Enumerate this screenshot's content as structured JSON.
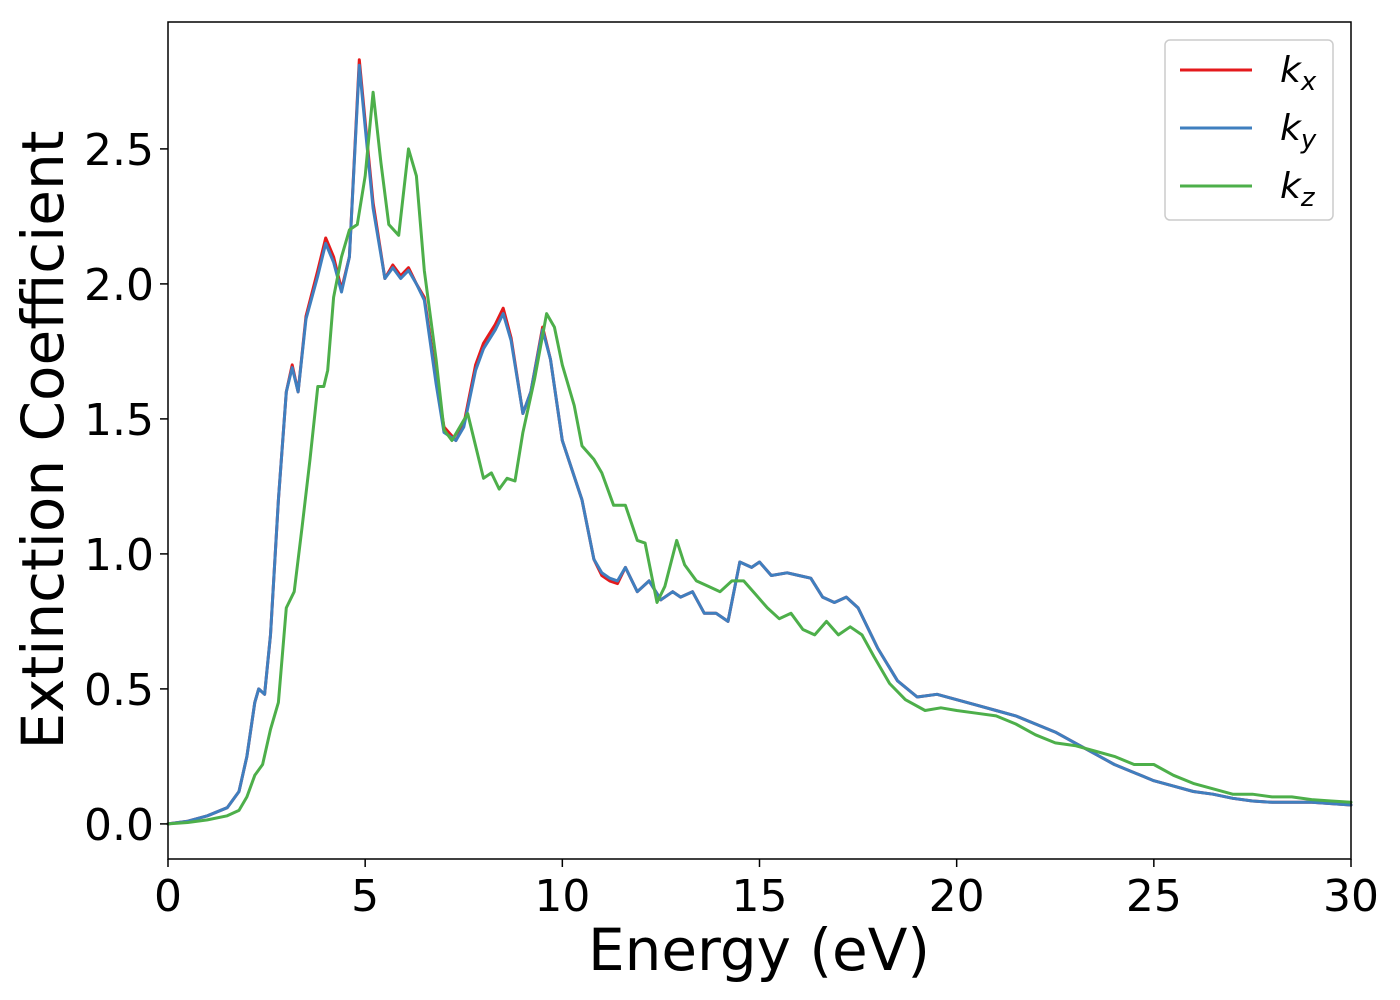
{
  "chart_data": {
    "type": "line",
    "xlabel": "Energy (eV)",
    "ylabel": "Extinction Coefficient",
    "xlim": [
      0,
      30
    ],
    "ylim": [
      -0.13,
      2.97
    ],
    "xticks": [
      "0",
      "5",
      "10",
      "15",
      "20",
      "25",
      "30"
    ],
    "yticks": [
      "0.0",
      "0.5",
      "1.0",
      "1.5",
      "2.0",
      "2.5"
    ],
    "grid": false,
    "legend_position": "top-right",
    "series": [
      {
        "name": "k_x",
        "name_main": "k",
        "name_sub": "x",
        "color": "#e41a1c",
        "x": [
          0,
          0.5,
          1.0,
          1.5,
          1.8,
          2.0,
          2.2,
          2.3,
          2.45,
          2.6,
          2.8,
          3.0,
          3.15,
          3.3,
          3.5,
          3.8,
          4.0,
          4.2,
          4.4,
          4.6,
          4.85,
          5.0,
          5.2,
          5.5,
          5.7,
          5.9,
          6.1,
          6.3,
          6.5,
          6.8,
          7.0,
          7.3,
          7.5,
          7.8,
          8.0,
          8.3,
          8.5,
          8.7,
          9.0,
          9.2,
          9.5,
          9.7,
          10.0,
          10.5,
          10.8,
          11.0,
          11.2,
          11.4,
          11.6,
          11.9,
          12.2,
          12.5,
          12.8,
          13.0,
          13.3,
          13.6,
          13.9,
          14.2,
          14.5,
          14.8,
          15.0,
          15.3,
          15.7,
          16.0,
          16.3,
          16.6,
          16.9,
          17.2,
          17.5,
          18.0,
          18.5,
          19.0,
          19.5,
          20.0,
          20.5,
          21.0,
          21.5,
          22.0,
          22.5,
          23.0,
          23.5,
          24.0,
          24.5,
          25.0,
          25.5,
          26.0,
          26.5,
          27.0,
          27.5,
          28.0,
          28.5,
          29.0,
          29.5,
          30.0
        ],
        "y": [
          0.0,
          0.01,
          0.03,
          0.06,
          0.12,
          0.25,
          0.45,
          0.5,
          0.48,
          0.7,
          1.2,
          1.6,
          1.7,
          1.6,
          1.88,
          2.05,
          2.17,
          2.1,
          1.98,
          2.1,
          2.83,
          2.6,
          2.3,
          2.02,
          2.07,
          2.03,
          2.06,
          2.0,
          1.95,
          1.65,
          1.47,
          1.42,
          1.48,
          1.7,
          1.78,
          1.85,
          1.91,
          1.8,
          1.52,
          1.6,
          1.84,
          1.72,
          1.42,
          1.2,
          0.98,
          0.92,
          0.9,
          0.89,
          0.95,
          0.86,
          0.9,
          0.83,
          0.86,
          0.84,
          0.86,
          0.78,
          0.78,
          0.75,
          0.97,
          0.95,
          0.97,
          0.92,
          0.93,
          0.92,
          0.91,
          0.84,
          0.82,
          0.84,
          0.8,
          0.65,
          0.53,
          0.47,
          0.48,
          0.46,
          0.44,
          0.42,
          0.4,
          0.37,
          0.34,
          0.3,
          0.26,
          0.22,
          0.19,
          0.16,
          0.14,
          0.12,
          0.11,
          0.095,
          0.085,
          0.08,
          0.08,
          0.08,
          0.075,
          0.07
        ]
      },
      {
        "name": "k_y",
        "name_main": "k",
        "name_sub": "y",
        "color": "#3f7fbf",
        "x": [
          0,
          0.5,
          1.0,
          1.5,
          1.8,
          2.0,
          2.2,
          2.3,
          2.45,
          2.6,
          2.8,
          3.0,
          3.15,
          3.3,
          3.5,
          3.8,
          4.0,
          4.2,
          4.4,
          4.6,
          4.85,
          5.0,
          5.2,
          5.5,
          5.7,
          5.9,
          6.1,
          6.3,
          6.5,
          6.8,
          7.0,
          7.3,
          7.5,
          7.8,
          8.0,
          8.3,
          8.5,
          8.7,
          9.0,
          9.2,
          9.5,
          9.7,
          10.0,
          10.5,
          10.8,
          11.0,
          11.2,
          11.4,
          11.6,
          11.9,
          12.2,
          12.5,
          12.8,
          13.0,
          13.3,
          13.6,
          13.9,
          14.2,
          14.5,
          14.8,
          15.0,
          15.3,
          15.7,
          16.0,
          16.3,
          16.6,
          16.9,
          17.2,
          17.5,
          18.0,
          18.5,
          19.0,
          19.5,
          20.0,
          20.5,
          21.0,
          21.5,
          22.0,
          22.5,
          23.0,
          23.5,
          24.0,
          24.5,
          25.0,
          25.5,
          26.0,
          26.5,
          27.0,
          27.5,
          28.0,
          28.5,
          29.0,
          29.5,
          30.0
        ],
        "y": [
          0.0,
          0.01,
          0.03,
          0.06,
          0.12,
          0.25,
          0.45,
          0.5,
          0.48,
          0.7,
          1.2,
          1.6,
          1.69,
          1.6,
          1.87,
          2.03,
          2.15,
          2.08,
          1.97,
          2.1,
          2.81,
          2.58,
          2.28,
          2.02,
          2.06,
          2.02,
          2.05,
          2.0,
          1.94,
          1.63,
          1.45,
          1.42,
          1.47,
          1.68,
          1.76,
          1.83,
          1.89,
          1.79,
          1.52,
          1.6,
          1.83,
          1.72,
          1.42,
          1.2,
          0.98,
          0.93,
          0.91,
          0.9,
          0.95,
          0.86,
          0.9,
          0.83,
          0.86,
          0.84,
          0.86,
          0.78,
          0.78,
          0.75,
          0.97,
          0.95,
          0.97,
          0.92,
          0.93,
          0.92,
          0.91,
          0.84,
          0.82,
          0.84,
          0.8,
          0.65,
          0.53,
          0.47,
          0.48,
          0.46,
          0.44,
          0.42,
          0.4,
          0.37,
          0.34,
          0.3,
          0.26,
          0.22,
          0.19,
          0.16,
          0.14,
          0.12,
          0.11,
          0.095,
          0.085,
          0.08,
          0.08,
          0.08,
          0.075,
          0.07
        ]
      },
      {
        "name": "k_z",
        "name_main": "k",
        "name_sub": "z",
        "color": "#4daf4a",
        "x": [
          0,
          0.5,
          1.0,
          1.5,
          1.8,
          2.0,
          2.2,
          2.4,
          2.6,
          2.8,
          3.0,
          3.2,
          3.4,
          3.6,
          3.8,
          3.95,
          4.05,
          4.2,
          4.4,
          4.6,
          4.8,
          5.0,
          5.2,
          5.4,
          5.6,
          5.85,
          6.1,
          6.3,
          6.5,
          6.8,
          7.0,
          7.2,
          7.4,
          7.6,
          7.8,
          8.0,
          8.2,
          8.4,
          8.6,
          8.8,
          9.0,
          9.3,
          9.6,
          9.8,
          10.0,
          10.3,
          10.5,
          10.8,
          11.0,
          11.3,
          11.6,
          11.9,
          12.1,
          12.4,
          12.6,
          12.9,
          13.1,
          13.4,
          13.7,
          14.0,
          14.3,
          14.6,
          14.9,
          15.2,
          15.5,
          15.8,
          16.1,
          16.4,
          16.7,
          17.0,
          17.3,
          17.6,
          17.9,
          18.3,
          18.7,
          19.2,
          19.6,
          20.0,
          20.5,
          21.0,
          21.5,
          22.0,
          22.5,
          23.0,
          23.5,
          24.0,
          24.5,
          25.0,
          25.5,
          26.0,
          26.5,
          27.0,
          27.5,
          28.0,
          28.5,
          29.0,
          29.5,
          30.0
        ],
        "y": [
          0.0,
          0.005,
          0.015,
          0.03,
          0.05,
          0.1,
          0.18,
          0.22,
          0.35,
          0.45,
          0.8,
          0.86,
          1.1,
          1.35,
          1.62,
          1.62,
          1.68,
          1.95,
          2.1,
          2.2,
          2.22,
          2.4,
          2.71,
          2.45,
          2.22,
          2.18,
          2.5,
          2.4,
          2.05,
          1.72,
          1.46,
          1.42,
          1.47,
          1.52,
          1.4,
          1.28,
          1.3,
          1.24,
          1.28,
          1.27,
          1.45,
          1.65,
          1.89,
          1.84,
          1.7,
          1.55,
          1.4,
          1.35,
          1.3,
          1.18,
          1.18,
          1.05,
          1.04,
          0.82,
          0.88,
          1.05,
          0.96,
          0.9,
          0.88,
          0.86,
          0.9,
          0.9,
          0.85,
          0.8,
          0.76,
          0.78,
          0.72,
          0.7,
          0.75,
          0.7,
          0.73,
          0.7,
          0.62,
          0.52,
          0.46,
          0.42,
          0.43,
          0.42,
          0.41,
          0.4,
          0.37,
          0.33,
          0.3,
          0.29,
          0.27,
          0.25,
          0.22,
          0.22,
          0.18,
          0.15,
          0.13,
          0.11,
          0.11,
          0.1,
          0.1,
          0.09,
          0.085,
          0.08
        ]
      }
    ]
  }
}
